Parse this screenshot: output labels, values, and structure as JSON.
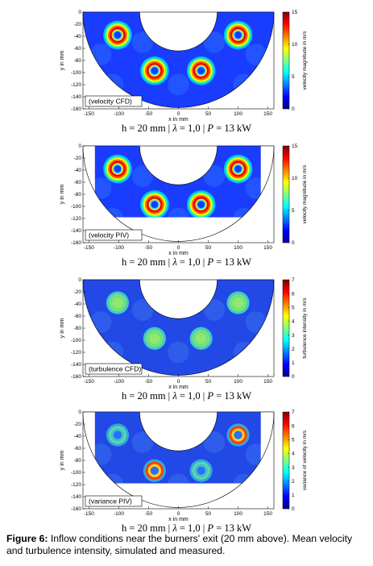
{
  "chart_data": [
    {
      "type": "heatmap",
      "label": "(velocity CFD)",
      "xlabel": "x in mm",
      "ylabel": "y in mm",
      "colorbar_label": "velocity magnitude in m/s",
      "colorbar_ticks": [
        "0",
        "5",
        "10",
        "15"
      ],
      "clim": [
        0,
        15
      ],
      "xlim": [
        -160,
        160
      ],
      "ylim": [
        -160,
        0
      ],
      "xticks": [
        "-150",
        "-100",
        "-50",
        "0",
        "50",
        "100",
        "150"
      ],
      "yticks": [
        "0",
        "-20",
        "-40",
        "-60",
        "-80",
        "-100",
        "-120",
        "-140",
        "-160"
      ],
      "condition": "h = 20 mm | λ = 1,0 | P = 13 kW",
      "colormap": "jet",
      "burners": [
        {
          "x": -102,
          "y": -38
        },
        {
          "x": 100,
          "y": -38
        },
        {
          "x": -40,
          "y": -97
        },
        {
          "x": 38,
          "y": -97
        }
      ]
    },
    {
      "type": "heatmap",
      "label": "(velocity PIV)",
      "xlabel": "x in mm",
      "ylabel": "y in mm",
      "colorbar_label": "velocity magnitude in m/s",
      "colorbar_ticks": [
        "0",
        "5",
        "10",
        "15"
      ],
      "clim": [
        0,
        15
      ],
      "xlim": [
        -160,
        160
      ],
      "ylim": [
        -160,
        0
      ],
      "xticks": [
        "-150",
        "-100",
        "-50",
        "0",
        "50",
        "100",
        "150"
      ],
      "yticks": [
        "0",
        "-20",
        "-40",
        "-60",
        "-80",
        "-100",
        "-120",
        "-140",
        "-160"
      ],
      "condition": "h = 20 mm | λ = 1,0 | P = 13 kW",
      "colormap": "jet",
      "burners": [
        {
          "x": -102,
          "y": -38
        },
        {
          "x": 100,
          "y": -38
        },
        {
          "x": -40,
          "y": -97
        },
        {
          "x": 38,
          "y": -97
        }
      ]
    },
    {
      "type": "heatmap",
      "label": "(turbulence CFD)",
      "xlabel": "x in mm",
      "ylabel": "y in mm",
      "colorbar_label": "turbulence intensity in m/s",
      "colorbar_ticks": [
        "0",
        "1",
        "2",
        "3",
        "4",
        "5",
        "6",
        "7"
      ],
      "clim": [
        0,
        7
      ],
      "xlim": [
        -160,
        160
      ],
      "ylim": [
        -160,
        0
      ],
      "xticks": [
        "-150",
        "-100",
        "-50",
        "0",
        "50",
        "100",
        "150"
      ],
      "yticks": [
        "0",
        "-20",
        "-40",
        "-60",
        "-80",
        "-100",
        "-120",
        "-140",
        "-160"
      ],
      "condition": "h = 20 mm | λ = 1,0 | P = 13 kW",
      "colormap": "jet",
      "burners": [
        {
          "x": -102,
          "y": -38
        },
        {
          "x": 100,
          "y": -38
        },
        {
          "x": -40,
          "y": -97
        },
        {
          "x": 38,
          "y": -97
        }
      ]
    },
    {
      "type": "heatmap",
      "label": "(variance PIV)",
      "xlabel": "x in mm",
      "ylabel": "y in mm",
      "colorbar_label": "variance of velocity in m/s",
      "colorbar_ticks": [
        "0",
        "1",
        "2",
        "3",
        "4",
        "5",
        "6",
        "7"
      ],
      "clim": [
        0,
        7
      ],
      "xlim": [
        -160,
        160
      ],
      "ylim": [
        -160,
        0
      ],
      "xticks": [
        "-150",
        "-100",
        "-50",
        "0",
        "50",
        "100",
        "150"
      ],
      "yticks": [
        "0",
        "-20",
        "-40",
        "-60",
        "-80",
        "-100",
        "-120",
        "-140",
        "-160"
      ],
      "condition": "h = 20 mm | λ = 1,0 | P = 13 kW",
      "colormap": "jet",
      "burners": [
        {
          "x": -102,
          "y": -38
        },
        {
          "x": 100,
          "y": -38
        },
        {
          "x": -40,
          "y": -97
        },
        {
          "x": 38,
          "y": -97
        }
      ]
    }
  ],
  "caption": {
    "label": "Figure 6:",
    "text": "Inflow conditions near the burners' exit (20 mm above). Mean velocity and turbulence intensity, simulated and measured."
  },
  "condition_parts": {
    "h": "h = 20 mm | ",
    "lambda": "λ",
    "lambda_val": " = 1,0 | ",
    "p": "P",
    "p_val": " = 13 kW"
  }
}
